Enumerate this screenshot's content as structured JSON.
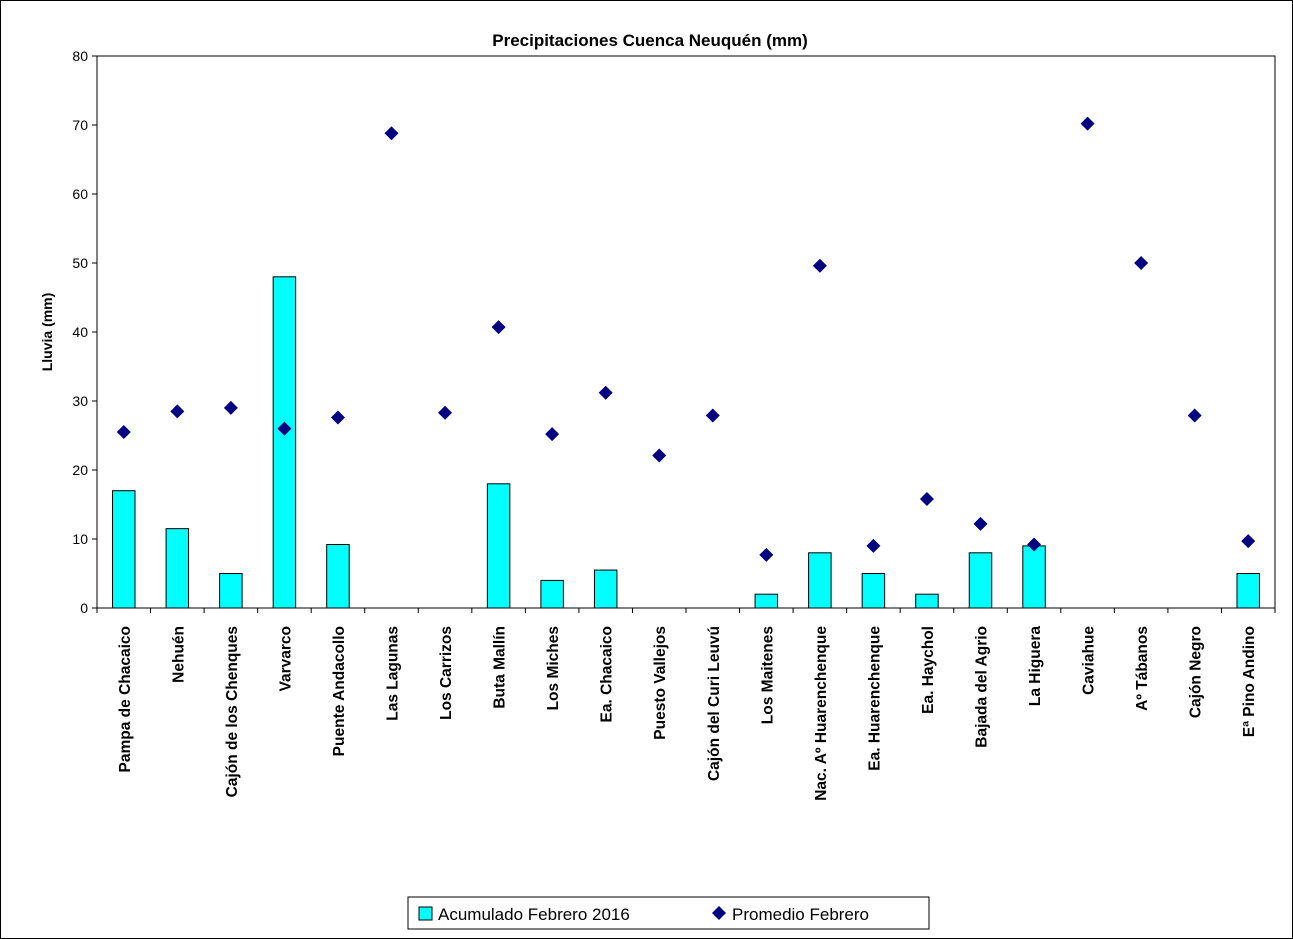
{
  "chart_data": {
    "type": "bar",
    "title": "Precipitaciones Cuenca Neuquén (mm)",
    "ylabel": "Lluvia (mm)",
    "xlabel": "",
    "ylim": [
      0,
      80
    ],
    "yticks": [
      0,
      10,
      20,
      30,
      40,
      50,
      60,
      70,
      80
    ],
    "grid": false,
    "legend_position": "bottom",
    "categories": [
      "Pampa de Chacaico",
      "Nehuén",
      "Cajón de los Chenques",
      "Varvarco",
      "Puente Andacollo",
      "Las Lagunas",
      "Los Carrizos",
      "Buta Mallín",
      "Los Miches",
      "Ea. Chacaico",
      "Puesto Vallejos",
      "Cajón del Curi Leuvú",
      "Los Maitenes",
      "Nac. Aº Huarenchenque",
      "Ea. Huarenchenque",
      "Ea. Haychol",
      "Bajada del Agrio",
      "La Higuera",
      "Caviahue",
      "Aº Tábanos",
      "Cajón Negro",
      "Eª Pino Andino"
    ],
    "series": [
      {
        "name": "Acumulado Febrero 2016",
        "kind": "bar",
        "color": "#00FFFF",
        "values": [
          17,
          11.5,
          5,
          48,
          9.2,
          0,
          0,
          18,
          4,
          5.5,
          0,
          0,
          2,
          8,
          5,
          2,
          8,
          9,
          0,
          0,
          0,
          5
        ]
      },
      {
        "name": "Promedio Febrero",
        "kind": "scatter",
        "marker": "diamond",
        "color": "#000080",
        "values": [
          25.5,
          28.5,
          29,
          26,
          27.6,
          68.8,
          28.3,
          40.7,
          25.2,
          31.2,
          22.1,
          27.9,
          7.7,
          49.6,
          9,
          15.8,
          12.2,
          9.2,
          70.2,
          50,
          27.9,
          9.7
        ]
      }
    ]
  }
}
